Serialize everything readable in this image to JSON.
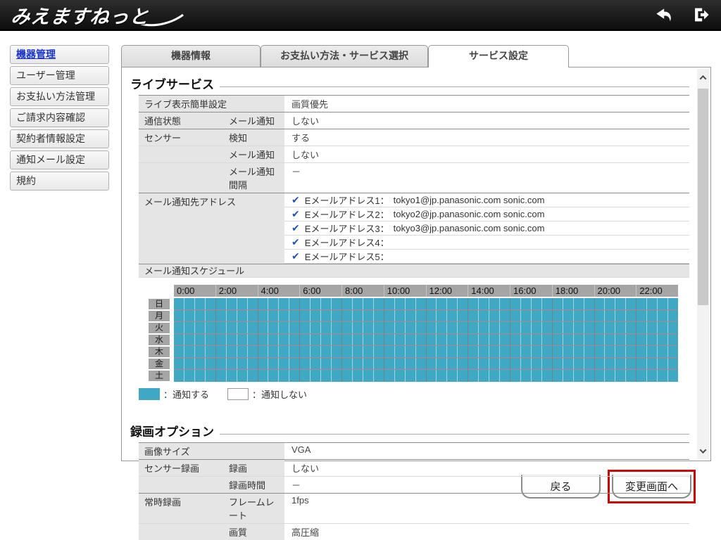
{
  "topbar": {
    "logo": "みえますねっと",
    "back_icon": "back-arrow",
    "logout_icon": "logout"
  },
  "sidebar": {
    "items": [
      {
        "label": "機器管理",
        "active": true
      },
      {
        "label": "ユーザー管理",
        "active": false
      },
      {
        "label": "お支払い方法管理",
        "active": false
      },
      {
        "label": "ご請求内容確認",
        "active": false
      },
      {
        "label": "契約者情報設定",
        "active": false
      },
      {
        "label": "通知メール設定",
        "active": false
      },
      {
        "label": "規約",
        "active": false
      }
    ]
  },
  "tabs": [
    {
      "label": "機器情報",
      "active": false
    },
    {
      "label": "お支払い方法・サービス選択",
      "active": false
    },
    {
      "label": "サービス設定",
      "active": true
    }
  ],
  "live_service": {
    "title": "ライブサービス",
    "rows": [
      {
        "c1": "ライブ表示簡単設定",
        "c2": "",
        "value": "画質優先",
        "span": true,
        "group": true
      },
      {
        "c1": "通信状態",
        "c2": "メール通知",
        "value": "しない",
        "span": false,
        "group": true
      },
      {
        "c1": "センサー",
        "c2": "検知",
        "value": "する",
        "span": false,
        "group": true
      },
      {
        "c1": "",
        "c2": "メール通知",
        "value": "しない",
        "span": false,
        "group": false
      },
      {
        "c1": "",
        "c2": "メール通知間隔",
        "value": "－",
        "span": false,
        "group": false
      }
    ],
    "email_label": "メール通知先アドレス",
    "emails": [
      {
        "checked": true,
        "label": "Eメールアドレス1：",
        "value": "tokyo1@jp.panasonic.com sonic.com"
      },
      {
        "checked": true,
        "label": "Eメールアドレス2：",
        "value": "tokyo2@jp.panasonic.com sonic.com"
      },
      {
        "checked": true,
        "label": "Eメールアドレス3：",
        "value": "tokyo3@jp.panasonic.com sonic.com"
      },
      {
        "checked": true,
        "label": "Eメールアドレス4：",
        "value": ""
      },
      {
        "checked": true,
        "label": "Eメールアドレス5：",
        "value": ""
      }
    ],
    "schedule_label": "メール通知スケジュール"
  },
  "schedule": {
    "times": [
      "0:00",
      "2:00",
      "4:00",
      "6:00",
      "8:00",
      "10:00",
      "12:00",
      "14:00",
      "16:00",
      "18:00",
      "20:00",
      "22:00"
    ],
    "days": [
      "日",
      "月",
      "火",
      "水",
      "木",
      "金",
      "土"
    ],
    "slots_per_day": 48,
    "all_selected": true,
    "on_color": "#3FA9C4",
    "legend_on": "：通知する",
    "legend_off": "：通知しない"
  },
  "recording": {
    "title": "録画オプション",
    "rows": [
      {
        "c1": "画像サイズ",
        "c2": "",
        "value": "VGA",
        "span": true,
        "group": true
      },
      {
        "c1": "センサー録画",
        "c2": "録画",
        "value": "しない",
        "span": false,
        "group": true
      },
      {
        "c1": "",
        "c2": "録画時間",
        "value": "－",
        "span": false,
        "group": false
      },
      {
        "c1": "常時録画",
        "c2": "フレームレート",
        "value": "1fps",
        "span": false,
        "group": true
      },
      {
        "c1": "",
        "c2": "画質",
        "value": "高圧縮",
        "span": false,
        "group": false
      }
    ]
  },
  "footer": {
    "back": "戻る",
    "change": "変更画面へ"
  }
}
